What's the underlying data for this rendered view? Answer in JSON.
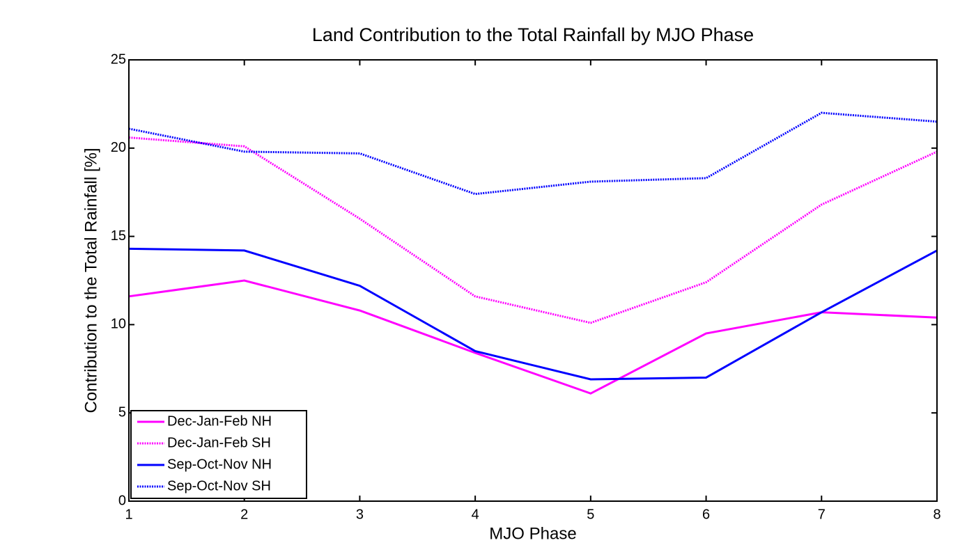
{
  "chart_data": {
    "type": "line",
    "title": "Land Contribution to the Total Rainfall by MJO Phase",
    "x_label": "MJO Phase",
    "y_label": "Contribution to the Total Rainfall [%]",
    "x": [
      1,
      2,
      3,
      4,
      5,
      6,
      7,
      8
    ],
    "xlim": [
      1,
      8
    ],
    "xticks": [
      1,
      2,
      3,
      4,
      5,
      6,
      7,
      8
    ],
    "ylim": [
      0,
      25
    ],
    "yticks": [
      0,
      5,
      10,
      15,
      20,
      25
    ],
    "legend_position": "lower left",
    "series": [
      {
        "name": "Dec-Jan-Feb NH",
        "color": "#ff00ff",
        "style": "solid",
        "values": [
          11.6,
          12.5,
          10.8,
          8.4,
          6.1,
          9.5,
          10.7,
          10.4
        ]
      },
      {
        "name": "Dec-Jan-Feb SH",
        "color": "#ff00ff",
        "style": "dotted",
        "values": [
          20.6,
          20.1,
          16.0,
          11.6,
          10.1,
          12.4,
          16.8,
          19.8
        ]
      },
      {
        "name": "Sep-Oct-Nov NH",
        "color": "#0000ff",
        "style": "solid",
        "values": [
          14.3,
          14.2,
          12.2,
          8.5,
          6.9,
          7.0,
          10.7,
          14.2
        ]
      },
      {
        "name": "Sep-Oct-Nov SH",
        "color": "#0000ff",
        "style": "dotted",
        "values": [
          21.1,
          19.8,
          19.7,
          17.4,
          18.1,
          18.3,
          22.0,
          21.5
        ]
      }
    ]
  }
}
